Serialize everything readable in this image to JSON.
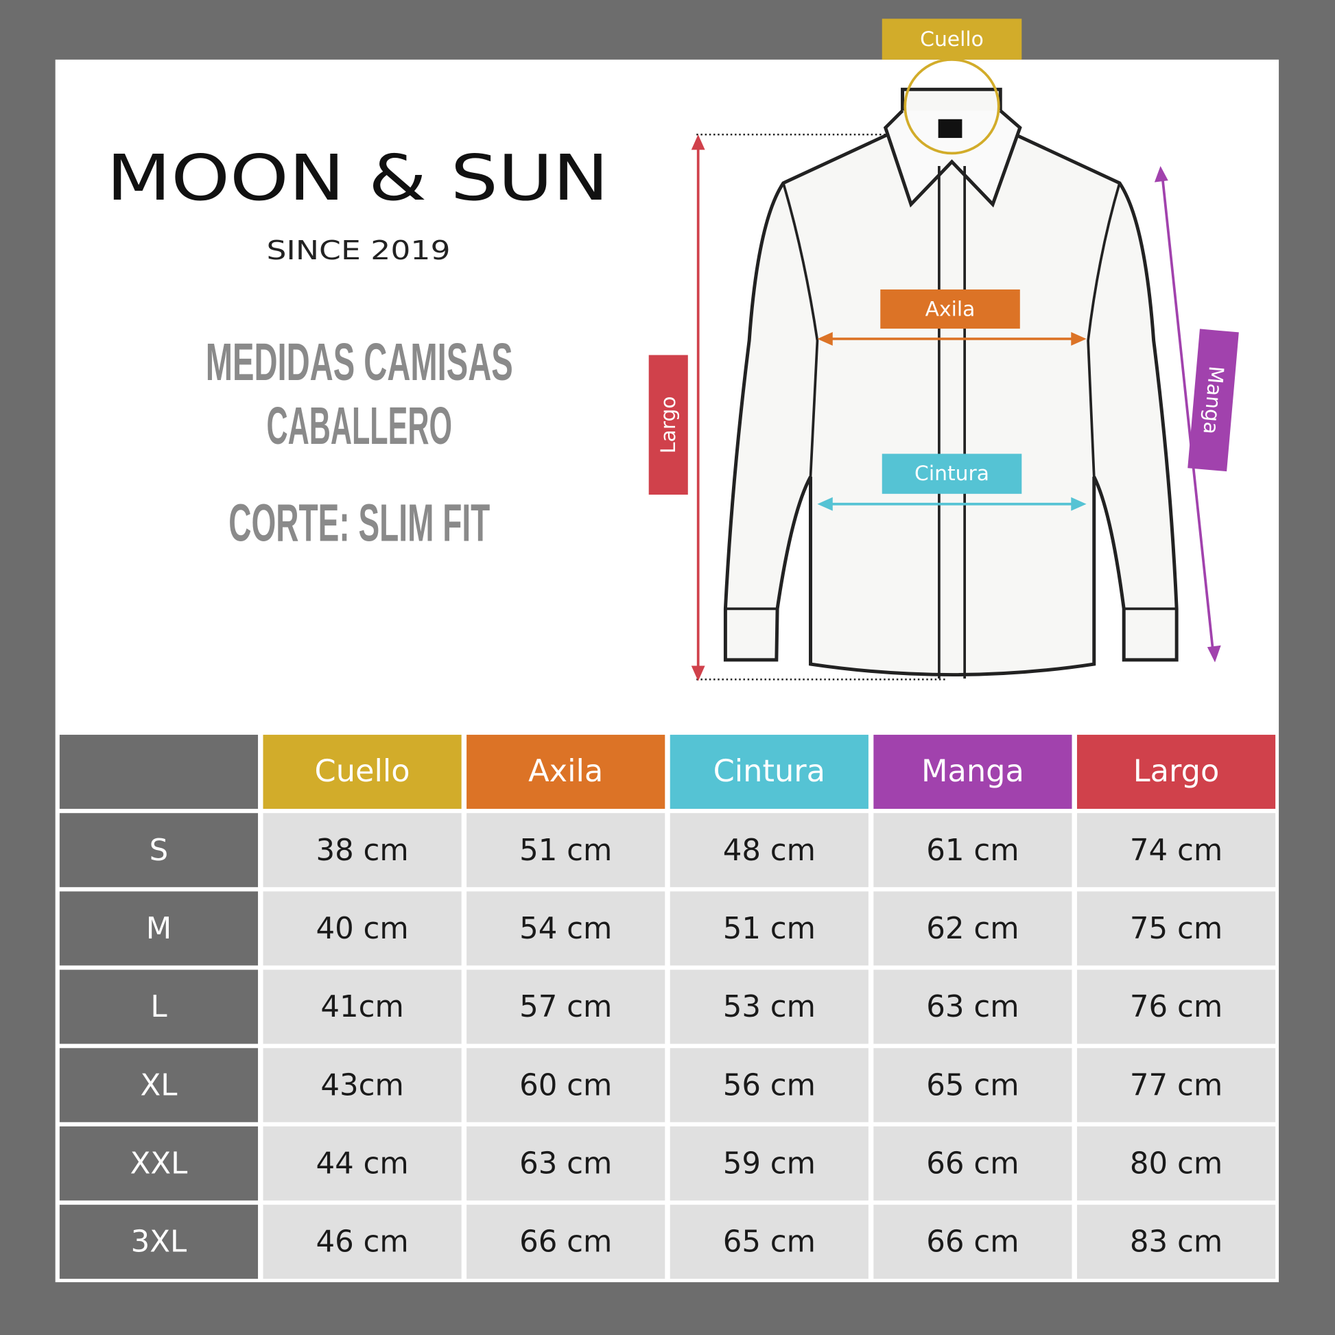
{
  "brand": {
    "name": "MOON & SUN",
    "since": "SINCE 2019"
  },
  "heading": {
    "line1": "MEDIDAS CAMISAS",
    "line2": "CABALLERO",
    "cut": "CORTE: SLIM FIT"
  },
  "diagram": {
    "cuello": "Cuello",
    "axila": "Axila",
    "cintura": "Cintura",
    "manga": "Manga",
    "largo": "Largo"
  },
  "table": {
    "header": [
      "Cuello",
      "Axila",
      "Cintura",
      "Manga",
      "Largo"
    ],
    "header_colors": [
      "#d2ac2a",
      "#dc7326",
      "#55c3d4",
      "#a142ad",
      "#d0414b"
    ],
    "rows": [
      [
        "S",
        "38 cm",
        "51 cm",
        "48 cm",
        "61 cm",
        "74 cm"
      ],
      [
        "M",
        "40 cm",
        "54 cm",
        "51 cm",
        "62 cm",
        "75 cm"
      ],
      [
        "L",
        "41cm",
        "57 cm",
        "53 cm",
        "63 cm",
        "76 cm"
      ],
      [
        "XL",
        "43cm",
        "60 cm",
        "56 cm",
        "65 cm",
        "77 cm"
      ],
      [
        "XXL",
        "44 cm",
        "63 cm",
        "59 cm",
        "66 cm",
        "80 cm"
      ],
      [
        "3XL",
        "46 cm",
        "66 cm",
        "65 cm",
        "66 cm",
        "83 cm"
      ]
    ]
  }
}
